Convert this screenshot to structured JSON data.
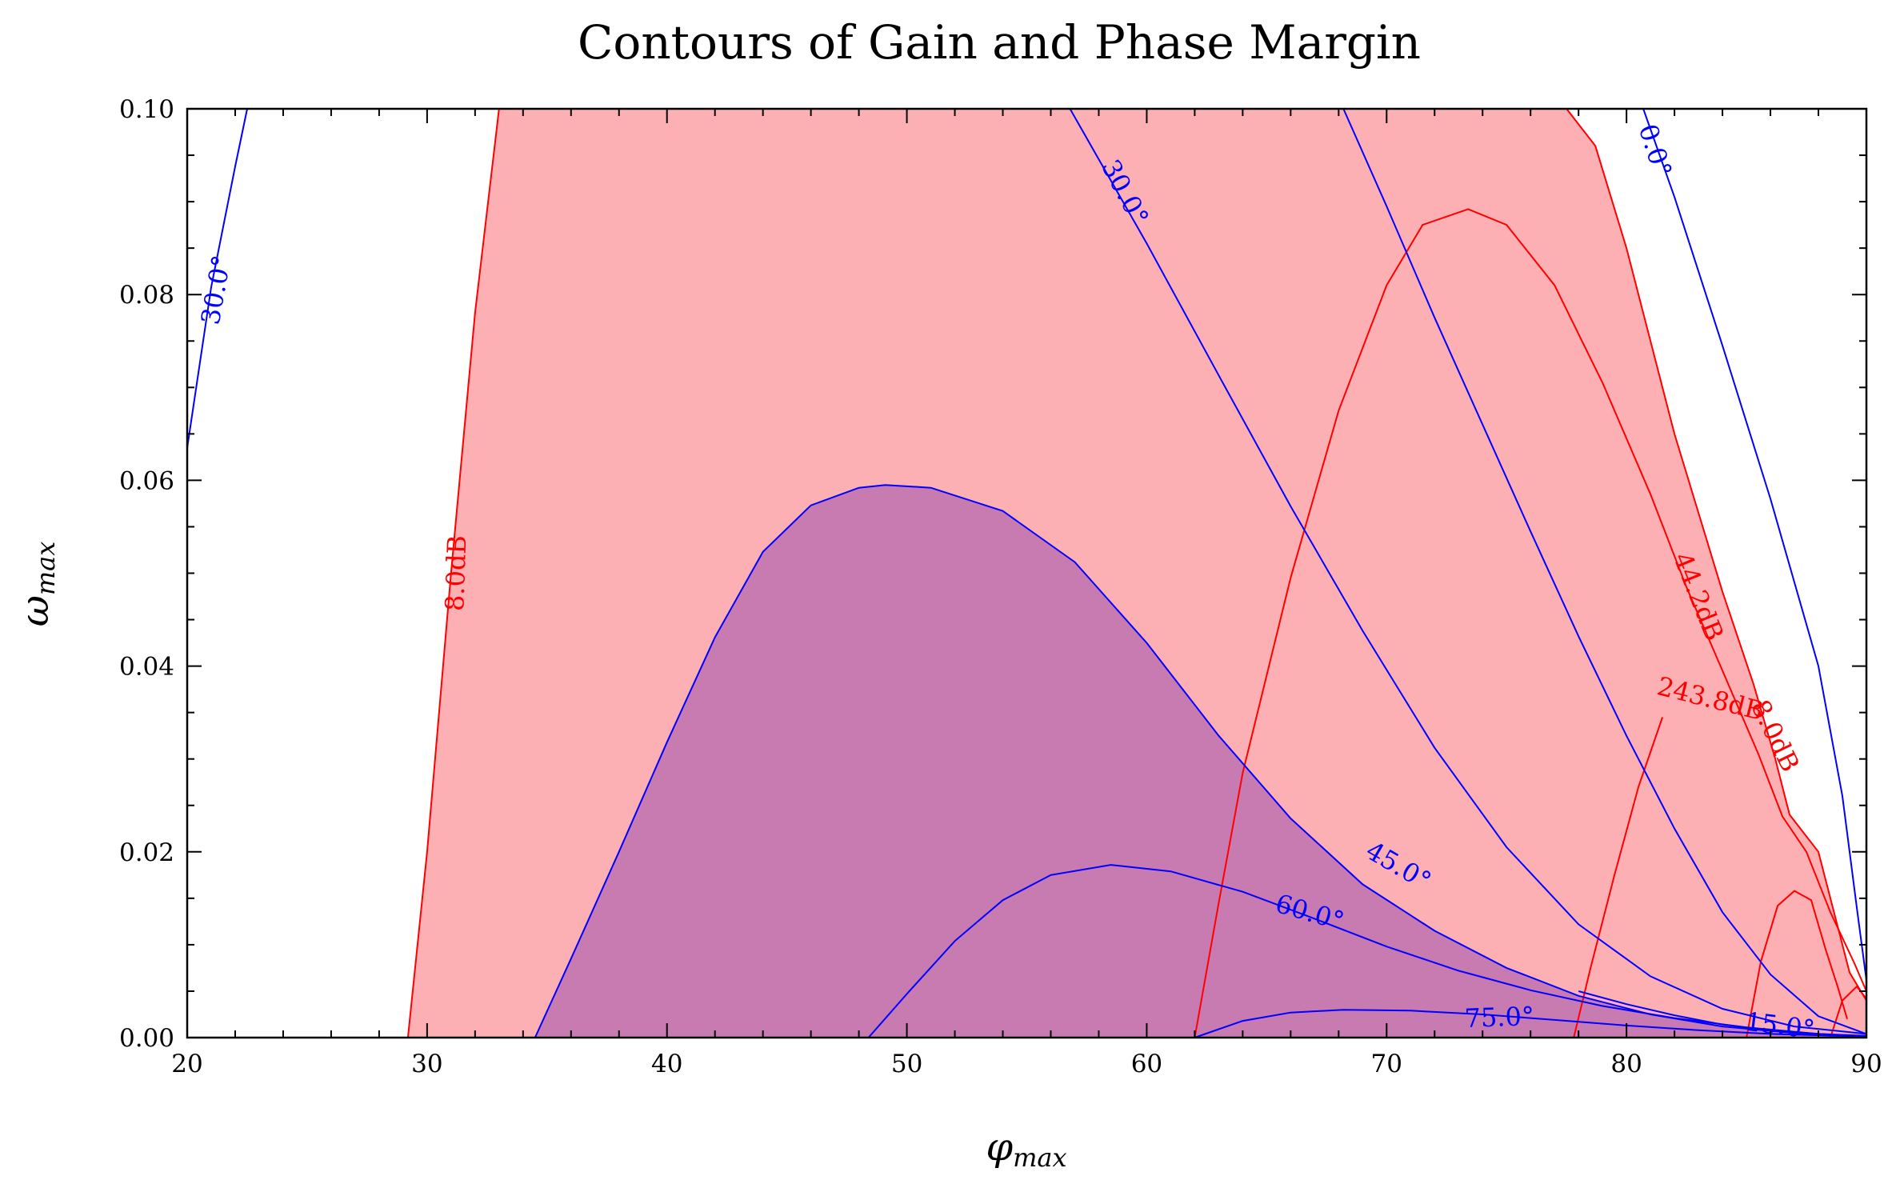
{
  "chart_data": {
    "type": "contour",
    "title": "Contours of Gain and Phase Margin",
    "xlabel": {
      "symbol": "φ",
      "sub": "max"
    },
    "ylabel": {
      "symbol": "ω",
      "sub": "max"
    },
    "xlim": [
      20,
      90
    ],
    "ylim": [
      0,
      0.1
    ],
    "x_ticks": [
      "20",
      "30",
      "40",
      "50",
      "60",
      "70",
      "80",
      "90"
    ],
    "y_ticks": [
      "0.00",
      "0.02",
      "0.04",
      "0.06",
      "0.08",
      "0.10"
    ],
    "grid": false,
    "fills": [
      {
        "name": "gain margin region",
        "color": "#fcb0b4",
        "points": [
          [
            29.2,
            0
          ],
          [
            30,
            0.02
          ],
          [
            31,
            0.05
          ],
          [
            32,
            0.078
          ],
          [
            33,
            0.1
          ],
          [
            77.5,
            0.1
          ],
          [
            78.7,
            0.096
          ],
          [
            80,
            0.085
          ],
          [
            82,
            0.065
          ],
          [
            84,
            0.048
          ],
          [
            85.3,
            0.038
          ],
          [
            86.2,
            0.03
          ],
          [
            86.8,
            0.024
          ],
          [
            88,
            0.02
          ],
          [
            89.3,
            0.007
          ],
          [
            90,
            0.004
          ],
          [
            90,
            0
          ]
        ]
      },
      {
        "name": "phase margin region",
        "color": "#c77bb1",
        "points": [
          [
            34.5,
            0
          ],
          [
            36,
            0.0085
          ],
          [
            38,
            0.02
          ],
          [
            40,
            0.0318
          ],
          [
            42,
            0.0431
          ],
          [
            44,
            0.0523
          ],
          [
            46,
            0.0573
          ],
          [
            48,
            0.0592
          ],
          [
            49.1,
            0.0595
          ],
          [
            51,
            0.0592
          ],
          [
            54,
            0.0567
          ],
          [
            57,
            0.0512
          ],
          [
            60,
            0.0425
          ],
          [
            63,
            0.0325
          ],
          [
            66,
            0.0236
          ],
          [
            69,
            0.0165
          ],
          [
            72,
            0.0115
          ],
          [
            75,
            0.0075
          ],
          [
            78,
            0.0045
          ],
          [
            81,
            0.0025
          ],
          [
            84,
            0.0012
          ],
          [
            87,
            0.0005
          ],
          [
            90,
            0.0002
          ],
          [
            90,
            0
          ]
        ]
      }
    ],
    "phase_contours": [
      {
        "label": "30.0°",
        "color": "#0000ff",
        "points": [
          [
            20,
            0.0635
          ],
          [
            21,
            0.0808
          ],
          [
            22,
            0.0938
          ],
          [
            22.5,
            0.1
          ]
        ]
      },
      {
        "label": "30.0°",
        "color": "#0000ff",
        "points": [
          [
            56.8,
            0.1
          ],
          [
            60,
            0.0855
          ],
          [
            63,
            0.0713
          ],
          [
            66,
            0.0572
          ],
          [
            69,
            0.0438
          ],
          [
            72,
            0.0312
          ],
          [
            75,
            0.0205
          ],
          [
            78,
            0.0122
          ],
          [
            81,
            0.0066
          ],
          [
            84,
            0.0031
          ],
          [
            87,
            0.0012
          ],
          [
            90,
            0.0004
          ]
        ]
      },
      {
        "label": "",
        "color": "#0000ff",
        "points": [
          [
            68.2,
            0.1
          ],
          [
            70,
            0.0895
          ],
          [
            72,
            0.0775
          ],
          [
            74,
            0.066
          ],
          [
            76,
            0.0545
          ],
          [
            78,
            0.0432
          ],
          [
            80,
            0.0325
          ],
          [
            82,
            0.0225
          ],
          [
            84,
            0.0135
          ],
          [
            86,
            0.0068
          ],
          [
            88,
            0.0023
          ],
          [
            90,
            0.0004
          ]
        ]
      },
      {
        "label": "0.0°",
        "color": "#0000ff",
        "points": [
          [
            80.7,
            0.1
          ],
          [
            82,
            0.0905
          ],
          [
            84,
            0.0745
          ],
          [
            86,
            0.058
          ],
          [
            88,
            0.04
          ],
          [
            89,
            0.026
          ],
          [
            89.6,
            0.014
          ],
          [
            90,
            0.0062
          ]
        ]
      },
      {
        "label": "45.0°",
        "color": "#0000ff",
        "points": [
          [
            34.5,
            0
          ],
          [
            36,
            0.0085
          ],
          [
            38,
            0.02
          ],
          [
            40,
            0.0318
          ],
          [
            42,
            0.0431
          ],
          [
            44,
            0.0523
          ],
          [
            46,
            0.0573
          ],
          [
            48,
            0.0592
          ],
          [
            49.1,
            0.0595
          ],
          [
            51,
            0.0592
          ],
          [
            54,
            0.0567
          ],
          [
            57,
            0.0512
          ],
          [
            60,
            0.0425
          ],
          [
            63,
            0.0325
          ],
          [
            66,
            0.0236
          ],
          [
            69,
            0.0165
          ],
          [
            72,
            0.0115
          ],
          [
            75,
            0.0075
          ],
          [
            78,
            0.0045
          ],
          [
            81,
            0.0025
          ],
          [
            84,
            0.0012
          ],
          [
            87,
            0.0005
          ],
          [
            90,
            0.0002
          ]
        ]
      },
      {
        "label": "60.0°",
        "color": "#0000ff",
        "points": [
          [
            48.4,
            0
          ],
          [
            50,
            0.0047
          ],
          [
            52,
            0.0104
          ],
          [
            54,
            0.0148
          ],
          [
            56,
            0.0175
          ],
          [
            58.5,
            0.0186
          ],
          [
            61,
            0.0179
          ],
          [
            64,
            0.0157
          ],
          [
            67,
            0.0128
          ],
          [
            70,
            0.0098
          ],
          [
            73,
            0.0072
          ],
          [
            76,
            0.0051
          ],
          [
            79,
            0.0034
          ],
          [
            82,
            0.0021
          ],
          [
            85,
            0.0011
          ],
          [
            88,
            0.0004
          ],
          [
            90,
            0.0001
          ]
        ]
      },
      {
        "label": "75.0°",
        "color": "#0000ff",
        "points": [
          [
            62,
            0
          ],
          [
            64,
            0.0018
          ],
          [
            66,
            0.0027
          ],
          [
            68.2,
            0.003
          ],
          [
            71,
            0.0029
          ],
          [
            74,
            0.0025
          ],
          [
            77,
            0.0019
          ],
          [
            80,
            0.0013
          ],
          [
            83,
            0.0008
          ],
          [
            86,
            0.0004
          ],
          [
            90,
            0.0001
          ]
        ]
      },
      {
        "label": "15.0°",
        "color": "#0000ff",
        "points": [
          [
            78,
            0.005
          ],
          [
            80,
            0.0036
          ],
          [
            82,
            0.0024
          ],
          [
            84,
            0.0014
          ],
          [
            86,
            0.0008
          ],
          [
            88,
            0.0004
          ],
          [
            90,
            0.0001
          ]
        ]
      }
    ],
    "gain_contours": [
      {
        "label": "8.0dB",
        "color": "#ff0000",
        "points": [
          [
            29.2,
            0
          ],
          [
            30,
            0.02
          ],
          [
            31,
            0.05
          ],
          [
            32,
            0.078
          ],
          [
            33,
            0.1
          ]
        ]
      },
      {
        "label": "8.0dB",
        "color": "#ff0000",
        "points": [
          [
            77.5,
            0.1
          ],
          [
            78.7,
            0.096
          ],
          [
            80,
            0.085
          ],
          [
            82,
            0.065
          ],
          [
            84,
            0.048
          ],
          [
            85.3,
            0.038
          ],
          [
            86.2,
            0.03
          ],
          [
            86.8,
            0.024
          ],
          [
            88,
            0.02
          ],
          [
            89.3,
            0.007
          ],
          [
            90,
            0.004
          ]
        ]
      },
      {
        "label": "44.2dB",
        "color": "#ff0000",
        "points": [
          [
            62,
            0
          ],
          [
            63,
            0.0145
          ],
          [
            64,
            0.0285
          ],
          [
            66,
            0.0495
          ],
          [
            68,
            0.0675
          ],
          [
            70,
            0.081
          ],
          [
            71.5,
            0.0875
          ],
          [
            73.4,
            0.0892
          ],
          [
            75,
            0.0875
          ],
          [
            77,
            0.081
          ],
          [
            79,
            0.0705
          ],
          [
            81,
            0.0585
          ],
          [
            82.5,
            0.0485
          ],
          [
            84,
            0.0395
          ],
          [
            85.5,
            0.0305
          ],
          [
            86.5,
            0.0238
          ],
          [
            87.5,
            0.02
          ],
          [
            88.5,
            0.0135
          ],
          [
            89.5,
            0.008
          ],
          [
            90,
            0.005
          ]
        ]
      },
      {
        "label": "243.8dB",
        "color": "#ff0000",
        "points": [
          [
            77.8,
            0
          ],
          [
            78.5,
            0.0075
          ],
          [
            79.5,
            0.0175
          ],
          [
            80.5,
            0.027
          ],
          [
            81.5,
            0.0345
          ]
        ]
      },
      {
        "label": "",
        "color": "#ff0000",
        "points": [
          [
            85,
            0
          ],
          [
            85.6,
            0.0082
          ],
          [
            86.3,
            0.0142
          ],
          [
            87,
            0.0158
          ],
          [
            87.7,
            0.0148
          ],
          [
            88.3,
            0.0095
          ],
          [
            88.8,
            0.0055
          ],
          [
            89.2,
            0.002
          ]
        ]
      },
      {
        "label": "",
        "color": "#ff0000",
        "points": [
          [
            88.5,
            0
          ],
          [
            89,
            0.004
          ],
          [
            89.6,
            0.0055
          ],
          [
            90,
            0.0042
          ]
        ]
      }
    ],
    "contour_labels": [
      {
        "text": "30.0°",
        "x": 21.2,
        "y": 0.0805,
        "angle": -80,
        "color": "#0000ff"
      },
      {
        "text": "30.0°",
        "x": 59.1,
        "y": 0.091,
        "angle": 62,
        "color": "#0000ff"
      },
      {
        "text": "0.0°",
        "x": 81.2,
        "y": 0.0955,
        "angle": 72,
        "color": "#0000ff"
      },
      {
        "text": "45.0°",
        "x": 70.5,
        "y": 0.0185,
        "angle": 30,
        "color": "#0000ff"
      },
      {
        "text": "60.0°",
        "x": 66.8,
        "y": 0.0135,
        "angle": 16,
        "color": "#0000ff"
      },
      {
        "text": "75.0°",
        "x": 74.7,
        "y": 0.0022,
        "angle": -2,
        "color": "#0000ff"
      },
      {
        "text": "15.0°",
        "x": 86.4,
        "y": 0.0013,
        "angle": 7,
        "color": "#0000ff"
      },
      {
        "text": "8.0dB",
        "x": 31.2,
        "y": 0.05,
        "angle": -88,
        "color": "#ff0000"
      },
      {
        "text": "44.2dB",
        "x": 83.0,
        "y": 0.0475,
        "angle": 68,
        "color": "#ff0000"
      },
      {
        "text": "243.8dB",
        "x": 83.5,
        "y": 0.0365,
        "angle": 14,
        "color": "#ff0000"
      },
      {
        "text": "8.0dB",
        "x": 86.2,
        "y": 0.0325,
        "angle": 64,
        "color": "#ff0000"
      }
    ]
  }
}
